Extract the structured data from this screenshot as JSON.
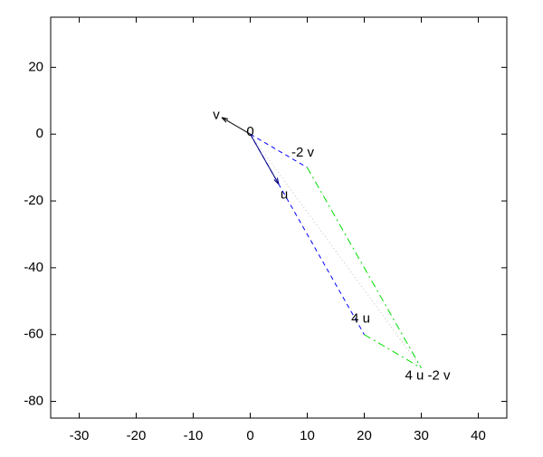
{
  "chart_data": {
    "type": "vector",
    "xlim": [
      -35,
      45
    ],
    "ylim": [
      -85,
      35
    ],
    "xticks": [
      -30,
      -20,
      -10,
      0,
      10,
      20,
      30,
      40
    ],
    "yticks": [
      -80,
      -60,
      -40,
      -20,
      0,
      20
    ],
    "points": [
      {
        "label": "0",
        "x": 0,
        "y": 0
      },
      {
        "label": "v",
        "x": -5,
        "y": 5
      },
      {
        "label": "-2 v",
        "x": 10,
        "y": -10
      },
      {
        "label": "u",
        "x": 5,
        "y": -15
      },
      {
        "label": "4 u",
        "x": 20,
        "y": -60
      },
      {
        "label": "4 u -2 v",
        "x": 30,
        "y": -70
      }
    ],
    "segments": [
      {
        "x": [
          0,
          10
        ],
        "y": [
          0,
          -10
        ],
        "color": "#0000ff",
        "style": "dashed"
      },
      {
        "x": [
          0,
          20
        ],
        "y": [
          0,
          -60
        ],
        "color": "#0000ff",
        "style": "dashed"
      },
      {
        "x": [
          10,
          30
        ],
        "y": [
          -10,
          -70
        ],
        "color": "#00dd00",
        "style": "dashdot"
      },
      {
        "x": [
          20,
          30
        ],
        "y": [
          -60,
          -70
        ],
        "color": "#00dd00",
        "style": "dashdot"
      },
      {
        "x": [
          0,
          30
        ],
        "y": [
          0,
          -70
        ],
        "color": "#c0c0c0",
        "style": "dotted"
      },
      {
        "x": [
          0,
          -5
        ],
        "y": [
          0,
          5
        ],
        "color": "#000000",
        "style": "arrow"
      },
      {
        "x": [
          0,
          5
        ],
        "y": [
          0,
          -15
        ],
        "color": "#000080",
        "style": "arrow"
      }
    ]
  }
}
